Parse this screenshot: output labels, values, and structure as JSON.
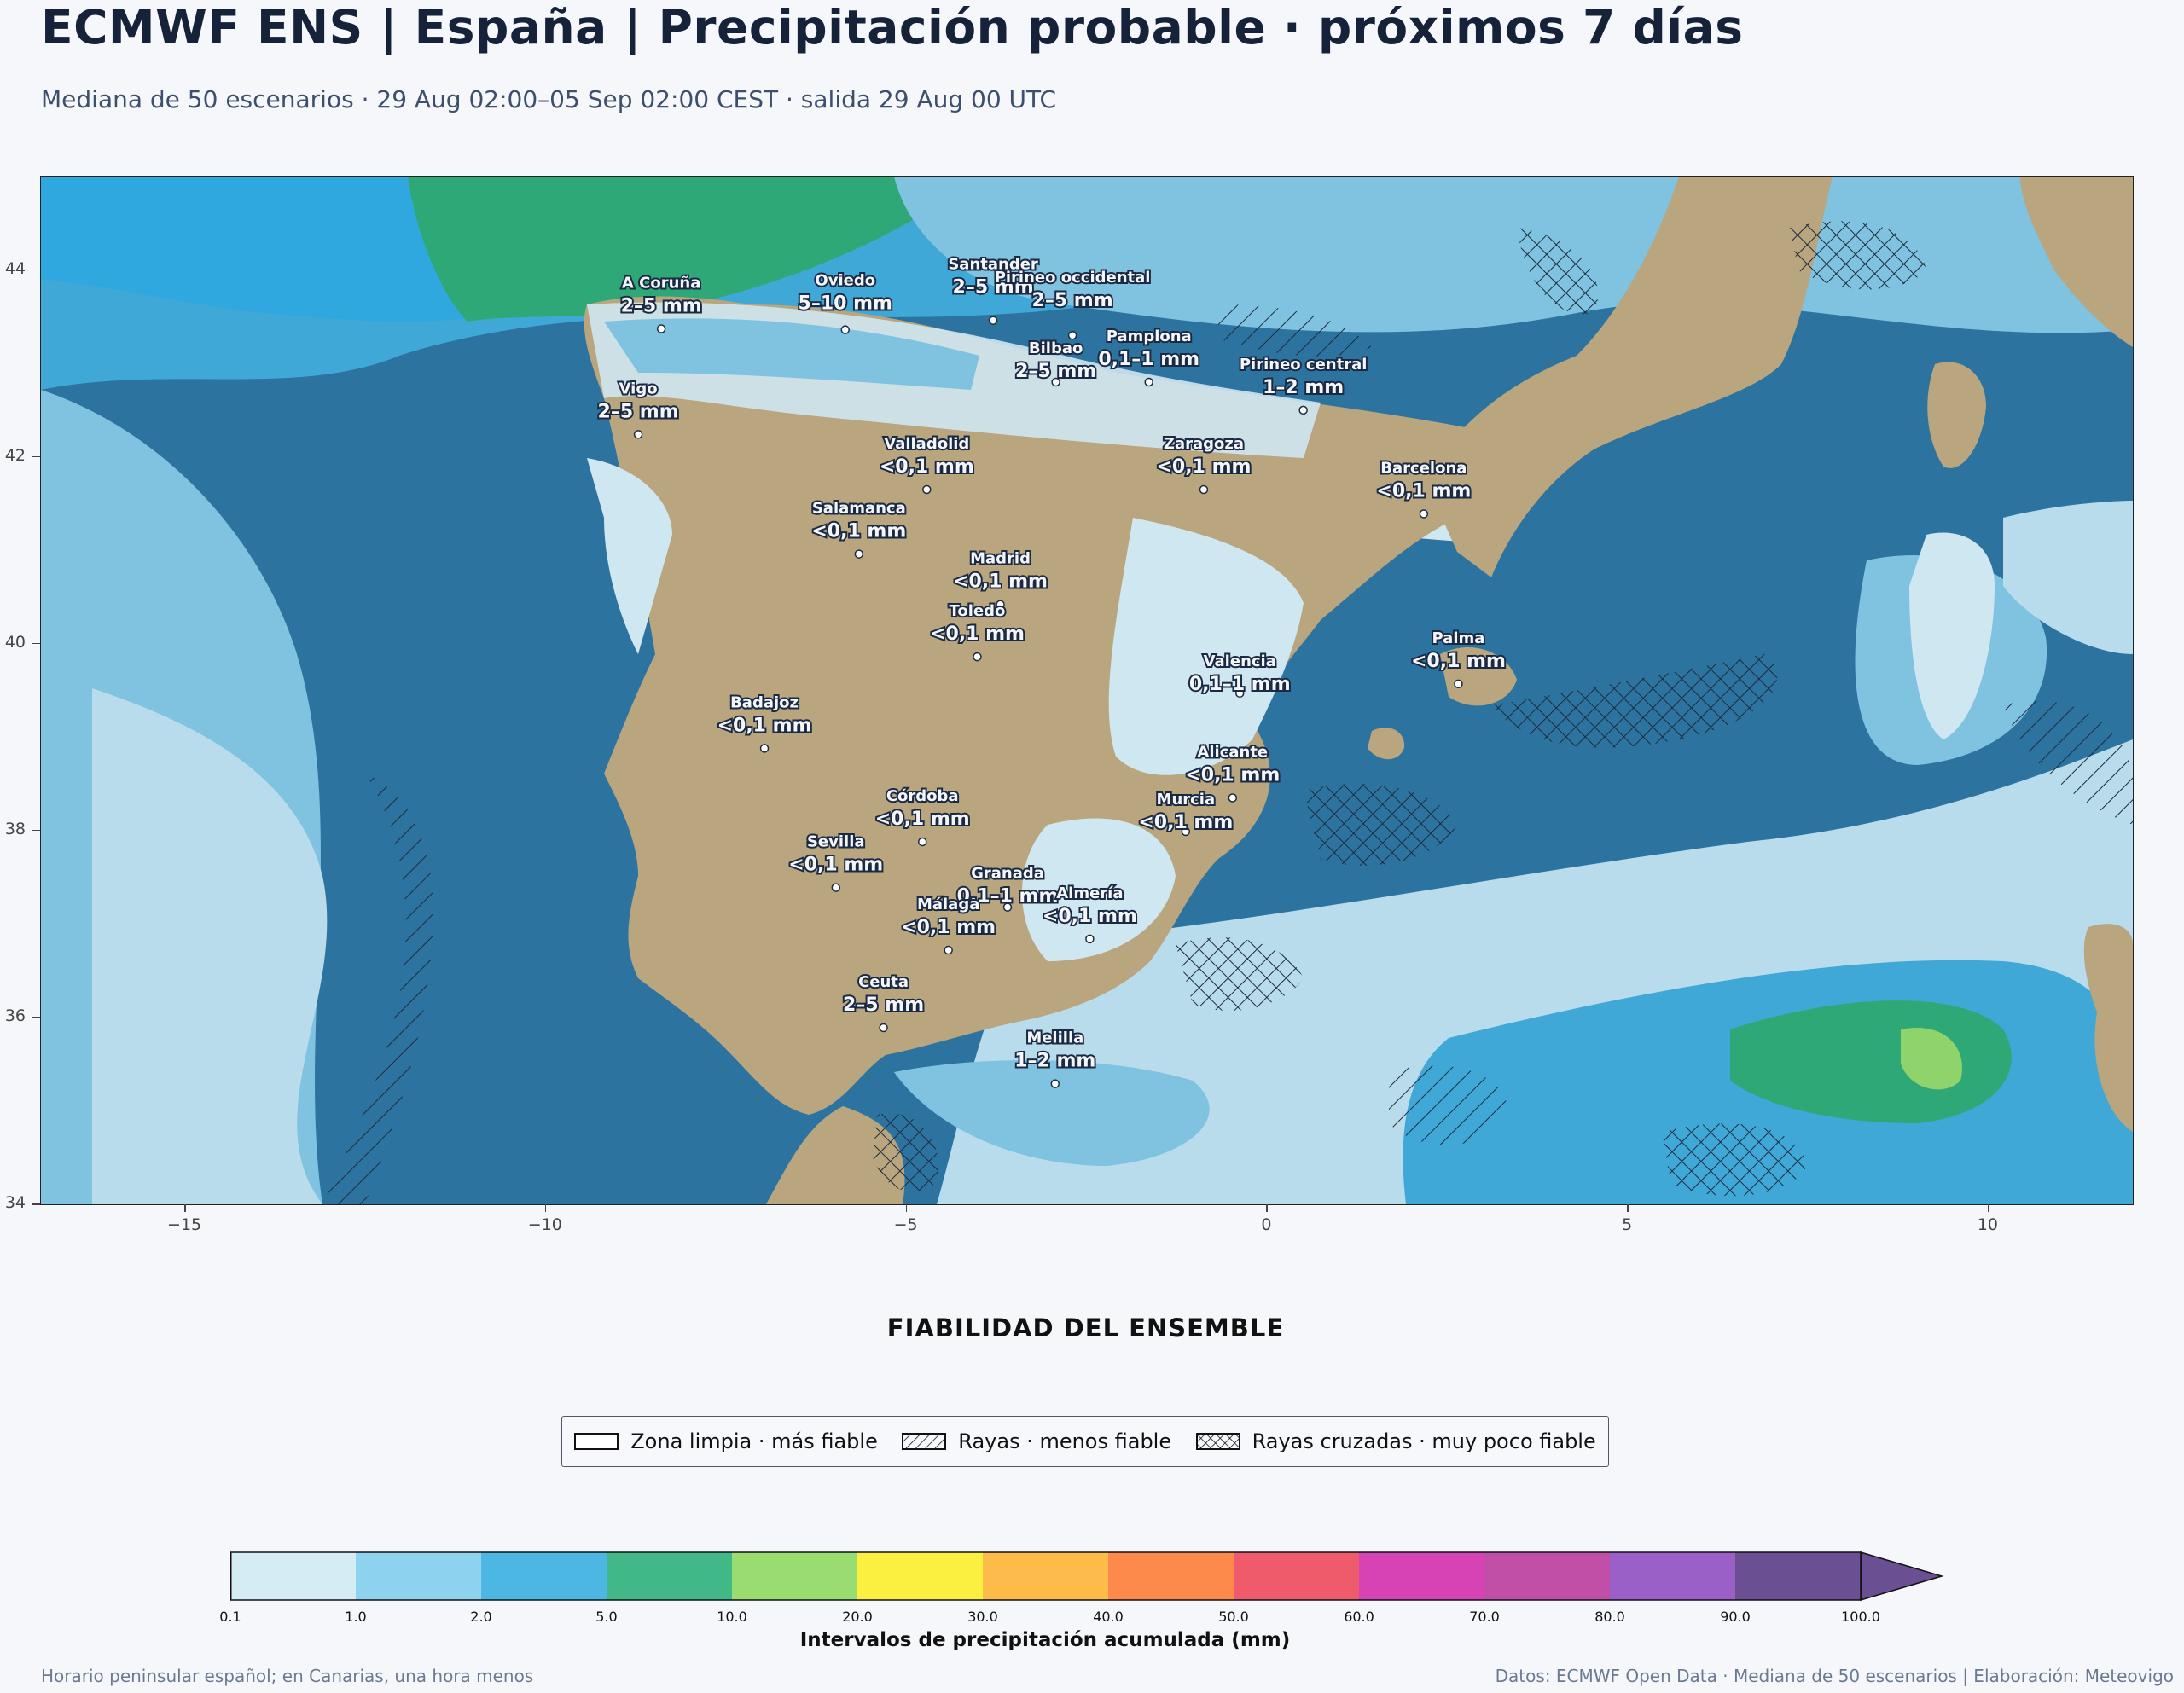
{
  "header": {
    "title": "ECMWF ENS | España | Precipitación probable · próximos 7 días",
    "subtitle": "Mediana de 50 escenarios · 29 Aug 02:00–05 Sep 02:00 CEST · salida 29 Aug 00 UTC"
  },
  "map": {
    "lon_range": [
      -17,
      12
    ],
    "lat_range": [
      34,
      45
    ],
    "x_ticks": [
      "−15",
      "−10",
      "−5",
      "0",
      "5",
      "10"
    ],
    "y_ticks": [
      "44",
      "42",
      "40",
      "38",
      "36",
      "34"
    ],
    "colors": {
      "ocean_heavy": "#2d73a0",
      "land": "#b9a57e",
      "band_0_1": "#cfe7f1",
      "band_1_2": "#7fc3e0",
      "band_2_5": "#3fa8d6",
      "band_5_10": "#2fa878",
      "band_10_20": "#8fd46a"
    },
    "cities": [
      {
        "name": "A Coruña",
        "value": "2–5 mm"
      },
      {
        "name": "Oviedo",
        "value": "5–10 mm"
      },
      {
        "name": "Santander",
        "value": "2–5 mm"
      },
      {
        "name": "Pirineo occidental",
        "value": "2–5 mm"
      },
      {
        "name": "Pamplona",
        "value": "0,1–1 mm"
      },
      {
        "name": "Pirineo central",
        "value": "1–2 mm"
      },
      {
        "name": "Bilbao",
        "value": "2–5 mm"
      },
      {
        "name": "Vigo",
        "value": "2–5 mm"
      },
      {
        "name": "Valladolid",
        "value": "<0,1 mm"
      },
      {
        "name": "Zaragoza",
        "value": "<0,1 mm"
      },
      {
        "name": "Barcelona",
        "value": "<0,1 mm"
      },
      {
        "name": "Salamanca",
        "value": "<0,1 mm"
      },
      {
        "name": "Madrid",
        "value": "<0,1 mm"
      },
      {
        "name": "Valencia",
        "value": "0,1–1 mm"
      },
      {
        "name": "Badajoz",
        "value": "<0,1 mm"
      },
      {
        "name": "Toledo",
        "value": "<0,1 mm"
      },
      {
        "name": "Palma",
        "value": "<0,1 mm"
      },
      {
        "name": "Córdoba",
        "value": "<0,1 mm"
      },
      {
        "name": "Alicante",
        "value": "<0,1 mm"
      },
      {
        "name": "Granada",
        "value": "0,1–1 mm"
      },
      {
        "name": "Murcia",
        "value": "<0,1 mm"
      },
      {
        "name": "Sevilla",
        "value": "<0,1 mm"
      },
      {
        "name": "Almería",
        "value": "<0,1 mm"
      },
      {
        "name": "Málaga",
        "value": "<0,1 mm"
      },
      {
        "name": "Ceuta",
        "value": "2–5 mm"
      },
      {
        "name": "Melilla",
        "value": "1–2 mm"
      }
    ]
  },
  "reliability": {
    "title": "FIABILIDAD DEL ENSEMBLE",
    "items": [
      {
        "label": "Zona limpia · más fiable",
        "pattern": "none"
      },
      {
        "label": "Rayas · menos fiable",
        "pattern": "hatch"
      },
      {
        "label": "Rayas cruzadas · muy poco fiable",
        "pattern": "crosshatch"
      }
    ]
  },
  "colorbar": {
    "label": "Intervalos de precipitación acumulada (mm)",
    "ticks": [
      "0.1",
      "1.0",
      "2.0",
      "5.0",
      "10.0",
      "20.0",
      "30.0",
      "40.0",
      "50.0",
      "60.0",
      "70.0",
      "80.0",
      "90.0",
      "100.0"
    ],
    "colors": [
      "#d6ecf5",
      "#8dd3ef",
      "#4cb7e3",
      "#41b987",
      "#99dc72",
      "#fbf03f",
      "#fdbb4a",
      "#fd8a4a",
      "#ef5b6b",
      "#d743b4",
      "#c14fa8",
      "#9a60c8",
      "#6b4f93"
    ],
    "extend_color": "#6b4f93"
  },
  "footer": {
    "left": "Horario peninsular español; en Canarias, una hora menos",
    "right": "Datos: ECMWF Open Data · Mediana de 50 escenarios | Elaboración: Meteovigo"
  }
}
